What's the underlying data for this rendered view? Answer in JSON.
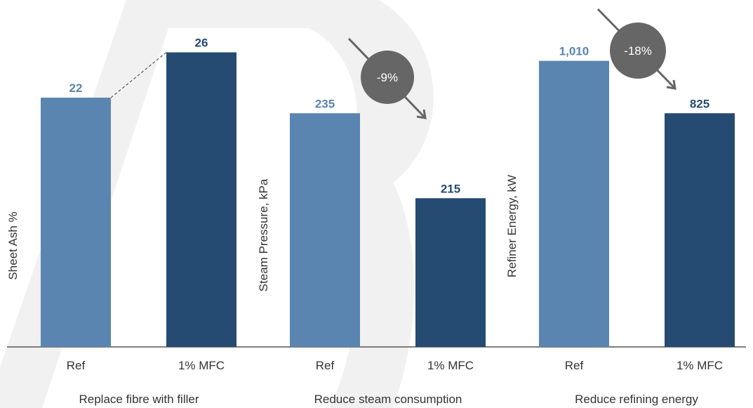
{
  "chart_data": [
    {
      "type": "bar",
      "categories": [
        "Ref",
        "1% MFC"
      ],
      "values": [
        22,
        26
      ],
      "value_labels": [
        "22",
        "26"
      ],
      "ylabel": "Sheet Ash %",
      "group_label": "Replace fibre with filler",
      "ylim": [
        0,
        30
      ]
    },
    {
      "type": "bar",
      "categories": [
        "Ref",
        "1% MFC"
      ],
      "values": [
        235,
        215
      ],
      "value_labels": [
        "235",
        "215"
      ],
      "ylabel": "Steam Pressure, kPa",
      "group_label": "Reduce steam consumption",
      "annotation": "-9%",
      "ylim": [
        180,
        260
      ]
    },
    {
      "type": "bar",
      "categories": [
        "Ref",
        "1% MFC"
      ],
      "values": [
        1010,
        825
      ],
      "value_labels": [
        "1,010",
        "825"
      ],
      "ylabel": "Refiner Energy, kW",
      "group_label": "Reduce refining energy",
      "annotation": "-18%",
      "ylim": [
        0,
        1200
      ]
    }
  ],
  "colors": {
    "ref_bar": "#5a85b0",
    "mfc_bar": "#264b73",
    "badge": "#666666",
    "axis": "#555555",
    "watermark": "#f1f1f1"
  }
}
